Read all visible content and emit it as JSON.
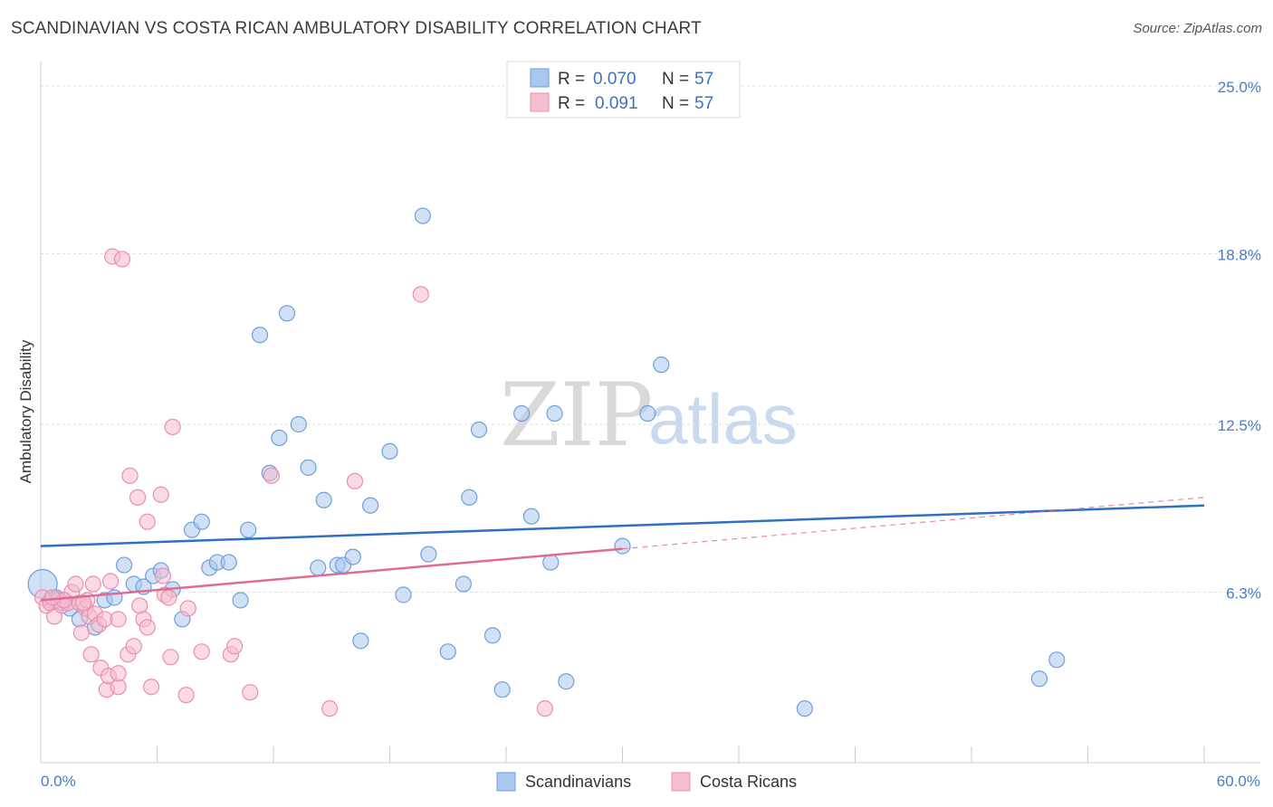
{
  "title": "SCANDINAVIAN VS COSTA RICAN AMBULATORY DISABILITY CORRELATION CHART",
  "source": "Source: ZipAtlas.com",
  "watermark": {
    "zip": "ZIP",
    "atlas": "atlas"
  },
  "legend": {
    "r_label": "R =",
    "n_label": "N =",
    "series": [
      {
        "name": "Scandinavians",
        "r": "0.070",
        "n": "57",
        "color": "#a9c8ef",
        "stroke": "#6f9fdb",
        "line": "#2f6fc4"
      },
      {
        "name": "Costa Ricans",
        "r": "0.091",
        "n": "57",
        "color": "#f7bcd0",
        "stroke": "#e98fae",
        "line": "#e06a94"
      }
    ]
  },
  "chart_data": {
    "type": "scatter",
    "title": "SCANDINAVIAN VS COSTA RICAN AMBULATORY DISABILITY CORRELATION CHART",
    "xlabel": "",
    "ylabel": "Ambulatory Disability",
    "xlim": [
      0,
      60
    ],
    "ylim": [
      0,
      25.5
    ],
    "x_tick_labels": [
      "0.0%",
      "60.0%"
    ],
    "y_ticks": [
      6.3,
      12.5,
      18.8,
      25.0
    ],
    "y_tick_labels": [
      "6.3%",
      "12.5%",
      "18.8%",
      "25.0%"
    ],
    "series": [
      {
        "name": "Scandinavians",
        "trend": {
          "x0": 0,
          "y0": 8.0,
          "x1": 60,
          "y1": 9.5
        },
        "points": [
          [
            0.1,
            6.6
          ],
          [
            0.5,
            6.0
          ],
          [
            0.8,
            6.1
          ],
          [
            1.1,
            5.9
          ],
          [
            1.5,
            5.7
          ],
          [
            2.0,
            5.3
          ],
          [
            2.8,
            5.0
          ],
          [
            3.3,
            6.0
          ],
          [
            3.8,
            6.1
          ],
          [
            4.3,
            7.3
          ],
          [
            4.8,
            6.6
          ],
          [
            5.3,
            6.5
          ],
          [
            5.8,
            6.9
          ],
          [
            6.2,
            7.1
          ],
          [
            6.8,
            6.4
          ],
          [
            7.3,
            5.3
          ],
          [
            7.8,
            8.6
          ],
          [
            8.3,
            8.9
          ],
          [
            8.7,
            7.2
          ],
          [
            9.1,
            7.4
          ],
          [
            9.7,
            7.4
          ],
          [
            10.3,
            6.0
          ],
          [
            10.7,
            8.6
          ],
          [
            11.3,
            15.8
          ],
          [
            11.8,
            10.7
          ],
          [
            12.3,
            12.0
          ],
          [
            12.7,
            16.6
          ],
          [
            13.3,
            12.5
          ],
          [
            13.8,
            10.9
          ],
          [
            14.3,
            7.2
          ],
          [
            14.6,
            9.7
          ],
          [
            15.3,
            7.3
          ],
          [
            15.6,
            7.3
          ],
          [
            16.1,
            7.6
          ],
          [
            16.5,
            4.5
          ],
          [
            17.0,
            9.5
          ],
          [
            18.0,
            11.5
          ],
          [
            18.7,
            6.2
          ],
          [
            19.7,
            20.2
          ],
          [
            20.0,
            7.7
          ],
          [
            21.0,
            4.1
          ],
          [
            21.8,
            6.6
          ],
          [
            22.1,
            9.8
          ],
          [
            22.6,
            12.3
          ],
          [
            23.3,
            4.7
          ],
          [
            23.8,
            2.7
          ],
          [
            24.8,
            12.9
          ],
          [
            25.3,
            9.1
          ],
          [
            26.3,
            7.4
          ],
          [
            26.5,
            12.9
          ],
          [
            27.1,
            3.0
          ],
          [
            30.0,
            8.0
          ],
          [
            31.3,
            12.9
          ],
          [
            32.0,
            14.7
          ],
          [
            39.4,
            2.0
          ],
          [
            51.5,
            3.1
          ],
          [
            52.4,
            3.8
          ]
        ]
      },
      {
        "name": "Costa Ricans",
        "trend": {
          "x0": 0,
          "y0": 6.0,
          "x1": 30,
          "y1": 7.9,
          "dash_x1": 60,
          "dash_y1": 9.8
        },
        "points": [
          [
            0.1,
            6.1
          ],
          [
            0.3,
            5.8
          ],
          [
            0.5,
            5.9
          ],
          [
            0.7,
            5.4
          ],
          [
            0.9,
            6.0
          ],
          [
            1.1,
            5.8
          ],
          [
            1.4,
            5.9
          ],
          [
            1.6,
            6.3
          ],
          [
            1.8,
            6.6
          ],
          [
            2.0,
            5.9
          ],
          [
            2.1,
            4.8
          ],
          [
            2.3,
            5.7
          ],
          [
            2.4,
            6.0
          ],
          [
            2.5,
            5.4
          ],
          [
            2.6,
            4.0
          ],
          [
            2.7,
            6.6
          ],
          [
            2.8,
            5.5
          ],
          [
            3.0,
            5.1
          ],
          [
            3.1,
            3.5
          ],
          [
            3.3,
            5.3
          ],
          [
            3.4,
            2.7
          ],
          [
            3.5,
            3.2
          ],
          [
            3.6,
            6.7
          ],
          [
            3.7,
            18.7
          ],
          [
            4.0,
            2.8
          ],
          [
            4.0,
            3.3
          ],
          [
            4.0,
            5.3
          ],
          [
            4.2,
            18.6
          ],
          [
            4.5,
            4.0
          ],
          [
            4.6,
            10.6
          ],
          [
            4.8,
            4.3
          ],
          [
            5.0,
            9.8
          ],
          [
            5.1,
            5.8
          ],
          [
            5.3,
            5.3
          ],
          [
            5.5,
            8.9
          ],
          [
            5.5,
            5.0
          ],
          [
            5.7,
            2.8
          ],
          [
            6.2,
            9.9
          ],
          [
            6.3,
            6.9
          ],
          [
            6.4,
            6.2
          ],
          [
            6.6,
            6.1
          ],
          [
            6.7,
            3.9
          ],
          [
            6.8,
            12.4
          ],
          [
            7.5,
            2.5
          ],
          [
            7.6,
            5.7
          ],
          [
            8.3,
            4.1
          ],
          [
            9.8,
            4.0
          ],
          [
            10.0,
            4.3
          ],
          [
            10.8,
            2.6
          ],
          [
            11.9,
            10.6
          ],
          [
            14.9,
            2.0
          ],
          [
            16.2,
            10.4
          ],
          [
            19.6,
            17.3
          ],
          [
            26.0,
            2.0
          ],
          [
            1.2,
            6.0
          ],
          [
            2.2,
            5.9
          ],
          [
            0.6,
            6.1
          ]
        ]
      }
    ]
  }
}
